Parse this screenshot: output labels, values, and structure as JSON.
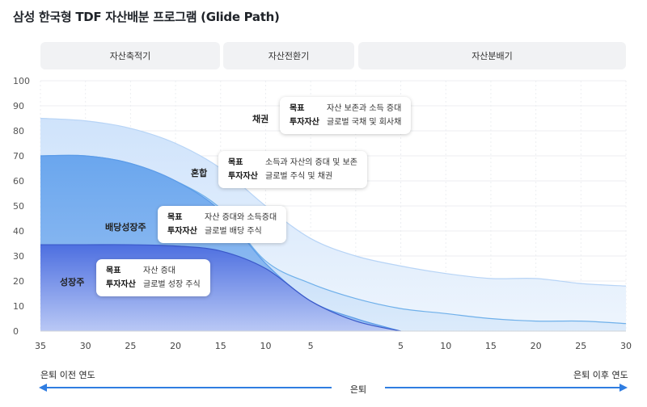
{
  "title": "삼성 한국형 TDF 자산배분 프로그램 (Glide Path)",
  "phases": [
    "자산축적기",
    "자산전환기",
    "자산분배기"
  ],
  "callouts": [
    {
      "band": "채권",
      "goal_key": "목표",
      "goal": "자산 보존과 소득 증대",
      "asset_key": "투자자산",
      "asset": "글로벌 국채 및 회사채"
    },
    {
      "band": "혼합",
      "goal_key": "목표",
      "goal": "소득과 자산의 증대 및 보존",
      "asset_key": "투자자산",
      "asset": "글로벌 주식 및 채권"
    },
    {
      "band": "배당성장주",
      "goal_key": "목표",
      "goal": "자산 증대와 소득증대",
      "asset_key": "투자자산",
      "asset": "글로벌 배당 주식"
    },
    {
      "band": "성장주",
      "goal_key": "목표",
      "goal": "자산 증대",
      "asset_key": "투자자산",
      "asset": "글로벌 성장 주식"
    }
  ],
  "bottom": {
    "left": "은퇴 이전 연도",
    "right": "은퇴 이후 연도",
    "center": "은퇴"
  },
  "colors": {
    "bond": "#cfe3fb",
    "mixed": "#a9cdf6",
    "dividend": "#6aa6ee",
    "growth": "#4d6fe0",
    "arrow": "#2f7de1"
  },
  "chart_data": {
    "type": "area",
    "ylim": [
      0,
      100
    ],
    "yticks": [
      "100",
      "90",
      "80",
      "70",
      "60",
      "50",
      "40",
      "30",
      "20",
      "10",
      "0"
    ],
    "xticks": [
      "35",
      "30",
      "25",
      "20",
      "15",
      "10",
      "5",
      "",
      "5",
      "10",
      "15",
      "20",
      "25",
      "30"
    ],
    "x": [
      -35,
      -30,
      -25,
      -20,
      -15,
      -10,
      -5,
      0,
      5,
      10,
      15,
      20,
      25,
      30
    ],
    "series": [
      {
        "name": "채권",
        "values": [
          85,
          84,
          81,
          75,
          65,
          50,
          37,
          30,
          26,
          23,
          21,
          21,
          19,
          18
        ]
      },
      {
        "name": "혼합",
        "values": [
          70,
          70,
          67,
          60,
          49,
          28,
          19,
          13,
          9,
          7,
          5,
          4,
          4,
          3
        ]
      },
      {
        "name": "배당성장주",
        "values": [
          70,
          70,
          67,
          60,
          48,
          27,
          12,
          5,
          0,
          null,
          null,
          null,
          null,
          null
        ]
      },
      {
        "name": "성장주",
        "values": [
          34.5,
          34.5,
          34.5,
          34,
          32,
          25,
          12,
          4,
          0,
          null,
          null,
          null,
          null,
          null
        ]
      }
    ]
  }
}
